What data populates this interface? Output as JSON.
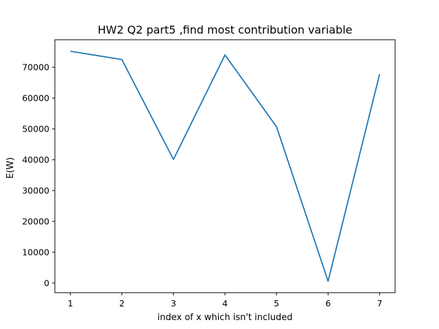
{
  "chart_data": {
    "type": "line",
    "title": "HW2 Q2 part5 ,find most contribution variable",
    "xlabel": "index of x which isn't included",
    "ylabel": "E(W)",
    "x": [
      1,
      2,
      3,
      4,
      5,
      6,
      7
    ],
    "series": [
      {
        "values": [
          75200,
          72500,
          40100,
          74000,
          50700,
          600,
          67800
        ],
        "color": "#1f77b4"
      }
    ],
    "xticks": [
      1,
      2,
      3,
      4,
      5,
      6,
      7
    ],
    "yticks": [
      0,
      10000,
      20000,
      30000,
      40000,
      50000,
      60000,
      70000
    ],
    "xlim": [
      0.7,
      7.3
    ],
    "ylim": [
      -3130,
      78930
    ],
    "grid": false,
    "legend": false
  }
}
